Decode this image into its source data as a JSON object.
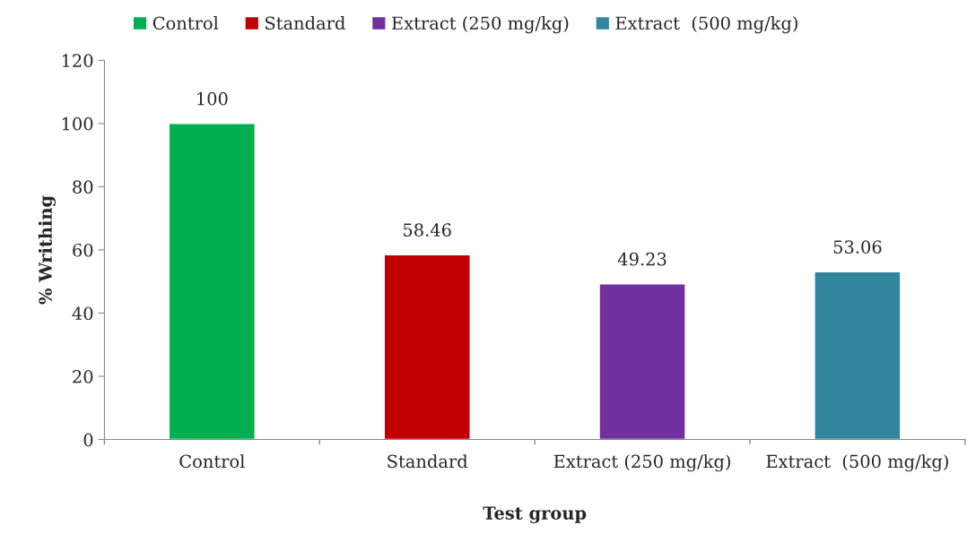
{
  "chart_data": {
    "type": "bar",
    "xlabel": "Test group",
    "ylabel": "% Writhing",
    "categories": [
      "Control",
      "Standard",
      "Extract (250 mg/kg)",
      "Extract  (500 mg/kg)"
    ],
    "series": [
      {
        "name": "Control",
        "color": "#00b050",
        "values": [
          100,
          null,
          null,
          null
        ]
      },
      {
        "name": "Standard",
        "color": "#c00000",
        "values": [
          null,
          58.46,
          null,
          null
        ]
      },
      {
        "name": "Extract (250 mg/kg)",
        "color": "#7030a0",
        "values": [
          null,
          null,
          49.23,
          null
        ]
      },
      {
        "name": "Extract  (500 mg/kg)",
        "color": "#31859c",
        "values": [
          null,
          null,
          null,
          53.06
        ]
      }
    ],
    "ylim": [
      0,
      120
    ],
    "yticks": [
      0,
      20,
      40,
      60,
      80,
      100,
      120
    ],
    "data_labels": true,
    "legend": "top",
    "grid": false
  }
}
